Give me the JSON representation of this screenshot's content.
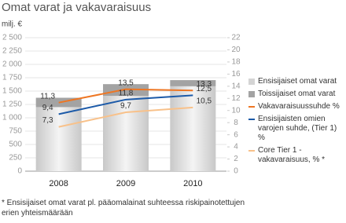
{
  "chart_data": {
    "type": "bar",
    "title": "Omat varat ja vakavaraisuus",
    "y_label": "milj. €",
    "categories": [
      "2008",
      "2009",
      "2010"
    ],
    "series": [
      {
        "name": "Ensisijaiset omat varat",
        "color": "#d4d4d4",
        "values": [
          1200,
          1410,
          1590
        ],
        "stacked": true
      },
      {
        "name": "Toissijaiset omat varat",
        "color": "#a3a3a3",
        "values": [
          175,
          220,
          115
        ],
        "stacked": true
      },
      {
        "name": "Vakavaraisuussuhde %",
        "type": "line",
        "axis": "y2",
        "color": "#ee7623",
        "values": [
          11.3,
          13.5,
          13.3
        ],
        "value_labels": [
          "11,3",
          "13,5",
          "13,3"
        ]
      },
      {
        "name": "Ensisijaisten omien varojen suhde, (Tier 1) %",
        "type": "line",
        "axis": "y2",
        "color": "#1c5aa8",
        "values": [
          9.4,
          11.8,
          12.5
        ],
        "value_labels": [
          "9,4",
          "11,8",
          "12,5"
        ]
      },
      {
        "name": "Core Tier 1 -vakavaraisuus, % *",
        "type": "line",
        "axis": "y2",
        "color": "#f8c18a",
        "values": [
          7.3,
          9.7,
          10.5
        ],
        "value_labels": [
          "7,3",
          "9,7",
          "10,5"
        ]
      }
    ],
    "ylim": [
      0,
      2500
    ],
    "yticks": [
      0,
      250,
      500,
      750,
      {
        "value": 1000,
        "label": "1 000"
      },
      {
        "value": 1250,
        "label": "1 250"
      },
      {
        "value": 1500,
        "label": "1 500"
      },
      {
        "value": 1750,
        "label": "1 750"
      },
      {
        "value": 2000,
        "label": "2 000"
      },
      {
        "value": 2250,
        "label": "2 250"
      },
      {
        "value": 2500,
        "label": "2 500"
      }
    ],
    "y2lim": [
      0,
      22
    ],
    "y2ticks": [
      0,
      2,
      4,
      6,
      8,
      10,
      12,
      14,
      16,
      18,
      20,
      22
    ],
    "grid": true,
    "footnote": "* Ensisijaiset omat varat pl. pääomalainat suhteessa riskipainotettujen erien yhteismäärään"
  }
}
